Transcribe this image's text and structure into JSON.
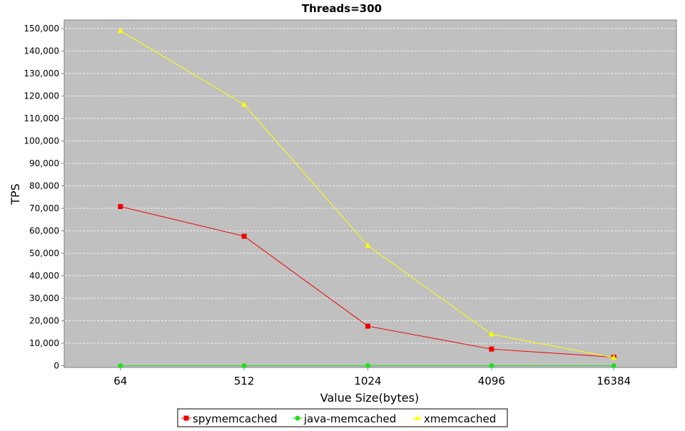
{
  "chart_data": {
    "type": "line",
    "title": "Threads=300",
    "xlabel": "Value Size(bytes)",
    "ylabel": "TPS",
    "categories": [
      "64",
      "512",
      "1024",
      "4096",
      "16384"
    ],
    "ylim": [
      0,
      155000
    ],
    "yticks": [
      0,
      10000,
      20000,
      30000,
      40000,
      50000,
      60000,
      70000,
      80000,
      90000,
      100000,
      110000,
      120000,
      130000,
      140000,
      150000
    ],
    "ytick_labels": [
      "0",
      "10,000",
      "20,000",
      "30,000",
      "40,000",
      "50,000",
      "60,000",
      "70,000",
      "80,000",
      "90,000",
      "100,000",
      "110,000",
      "120,000",
      "130,000",
      "140,000",
      "150,000"
    ],
    "grid": true,
    "legend_position": "bottom",
    "plot_background": "#c0c0c0",
    "series": [
      {
        "name": "spymemcached",
        "values": [
          70800,
          57600,
          17600,
          7400,
          3800
        ],
        "color": "#ee0000",
        "marker": "square"
      },
      {
        "name": "java-memcached",
        "values": [
          0,
          0,
          0,
          0,
          0
        ],
        "color": "#22dd22",
        "marker": "circle"
      },
      {
        "name": "xmemcached",
        "values": [
          149000,
          116200,
          53400,
          14000,
          3600
        ],
        "color": "#ffff00",
        "marker": "triangle"
      }
    ]
  }
}
